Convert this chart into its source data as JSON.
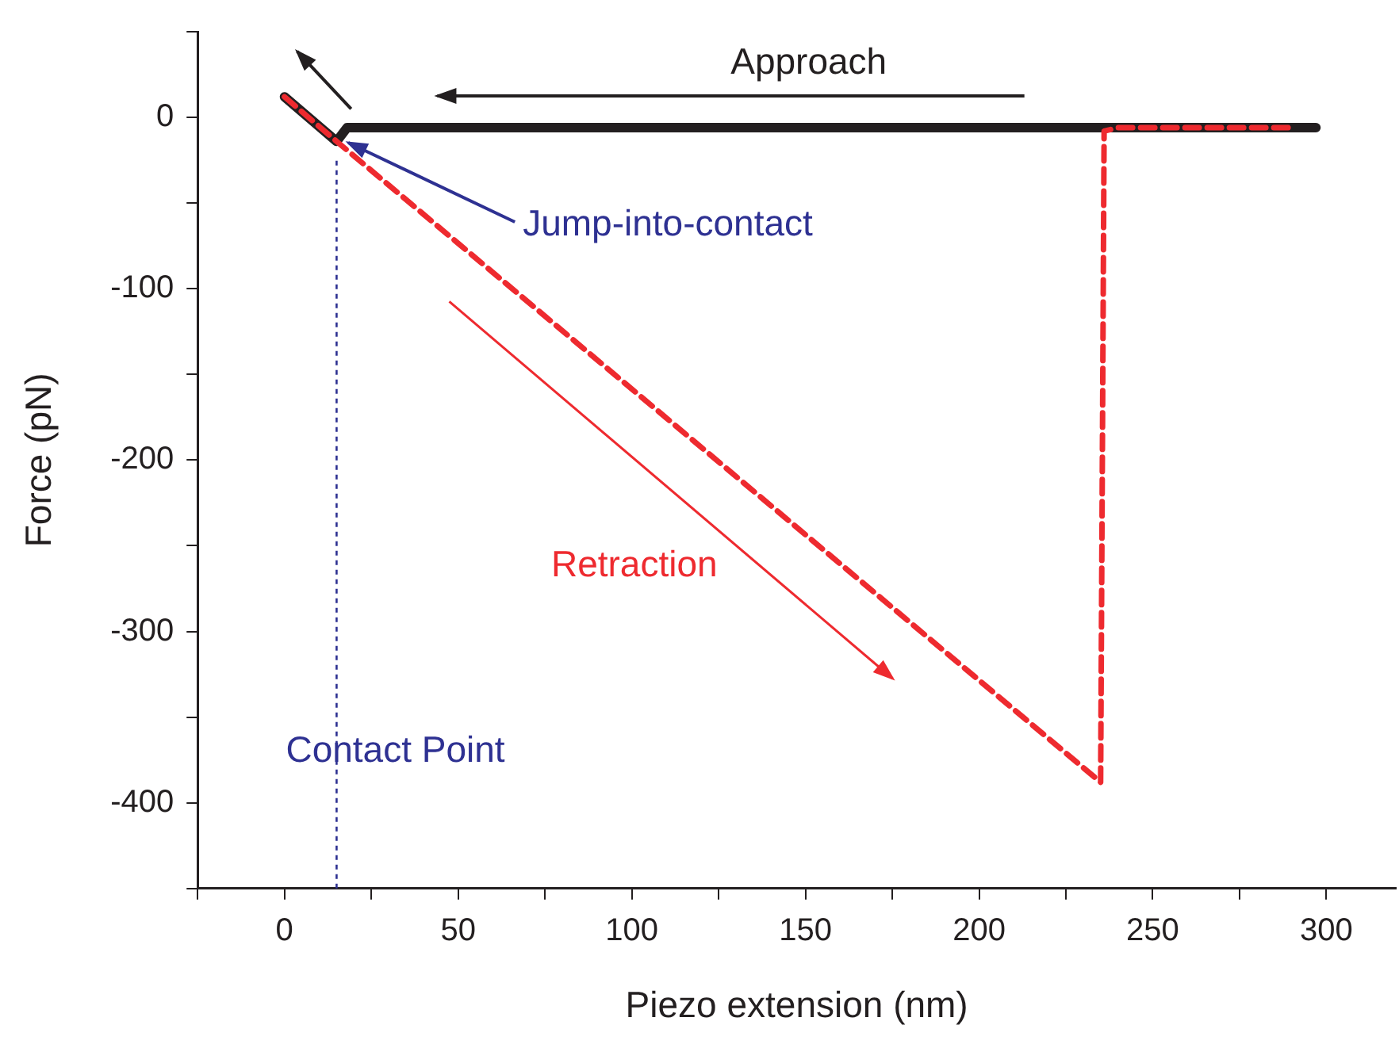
{
  "chart_data": {
    "type": "line",
    "xlabel": "Piezo extension (nm)",
    "ylabel": "Force (pN)",
    "xlim": [
      -25,
      320
    ],
    "ylim": [
      -450,
      50
    ],
    "xticks": [
      {
        "value": -25,
        "label": null
      },
      0,
      {
        "value": 25,
        "label": null
      },
      50,
      {
        "value": 75,
        "label": null
      },
      100,
      {
        "value": 125,
        "label": null
      },
      150,
      {
        "value": 175,
        "label": null
      },
      200,
      {
        "value": 225,
        "label": null
      },
      250,
      {
        "value": 275,
        "label": null
      },
      300
    ],
    "yticks": [
      {
        "value": -450,
        "label": null
      },
      -400,
      {
        "value": -350,
        "label": null
      },
      -300,
      {
        "value": -250,
        "label": null
      },
      -200,
      {
        "value": -150,
        "label": null
      },
      -100,
      {
        "value": -50,
        "label": null
      },
      0,
      {
        "value": 50,
        "label": null
      }
    ],
    "grid": false,
    "legend": false,
    "marker": "none",
    "series": [
      {
        "color": "#231f20",
        "line_style": "solid",
        "x": [
          0,
          15,
          18,
          297
        ],
        "values": [
          12,
          -14,
          -6,
          -6
        ]
      },
      {
        "color": "#ee2a2f",
        "line_style": "dashed",
        "x": [
          0,
          15,
          235,
          236,
          240,
          290
        ],
        "values": [
          12,
          -14,
          -388,
          -8,
          -6,
          -6
        ]
      }
    ],
    "ref_lines": [
      {
        "axis": "x",
        "value": 15,
        "label": "Contact Point",
        "color": "#2e3192",
        "line_style": "dotted"
      }
    ],
    "annotations": [
      "Approach",
      {
        "text": "Jump-into-contact",
        "x": 17,
        "y": -12
      },
      "Retraction"
    ]
  }
}
